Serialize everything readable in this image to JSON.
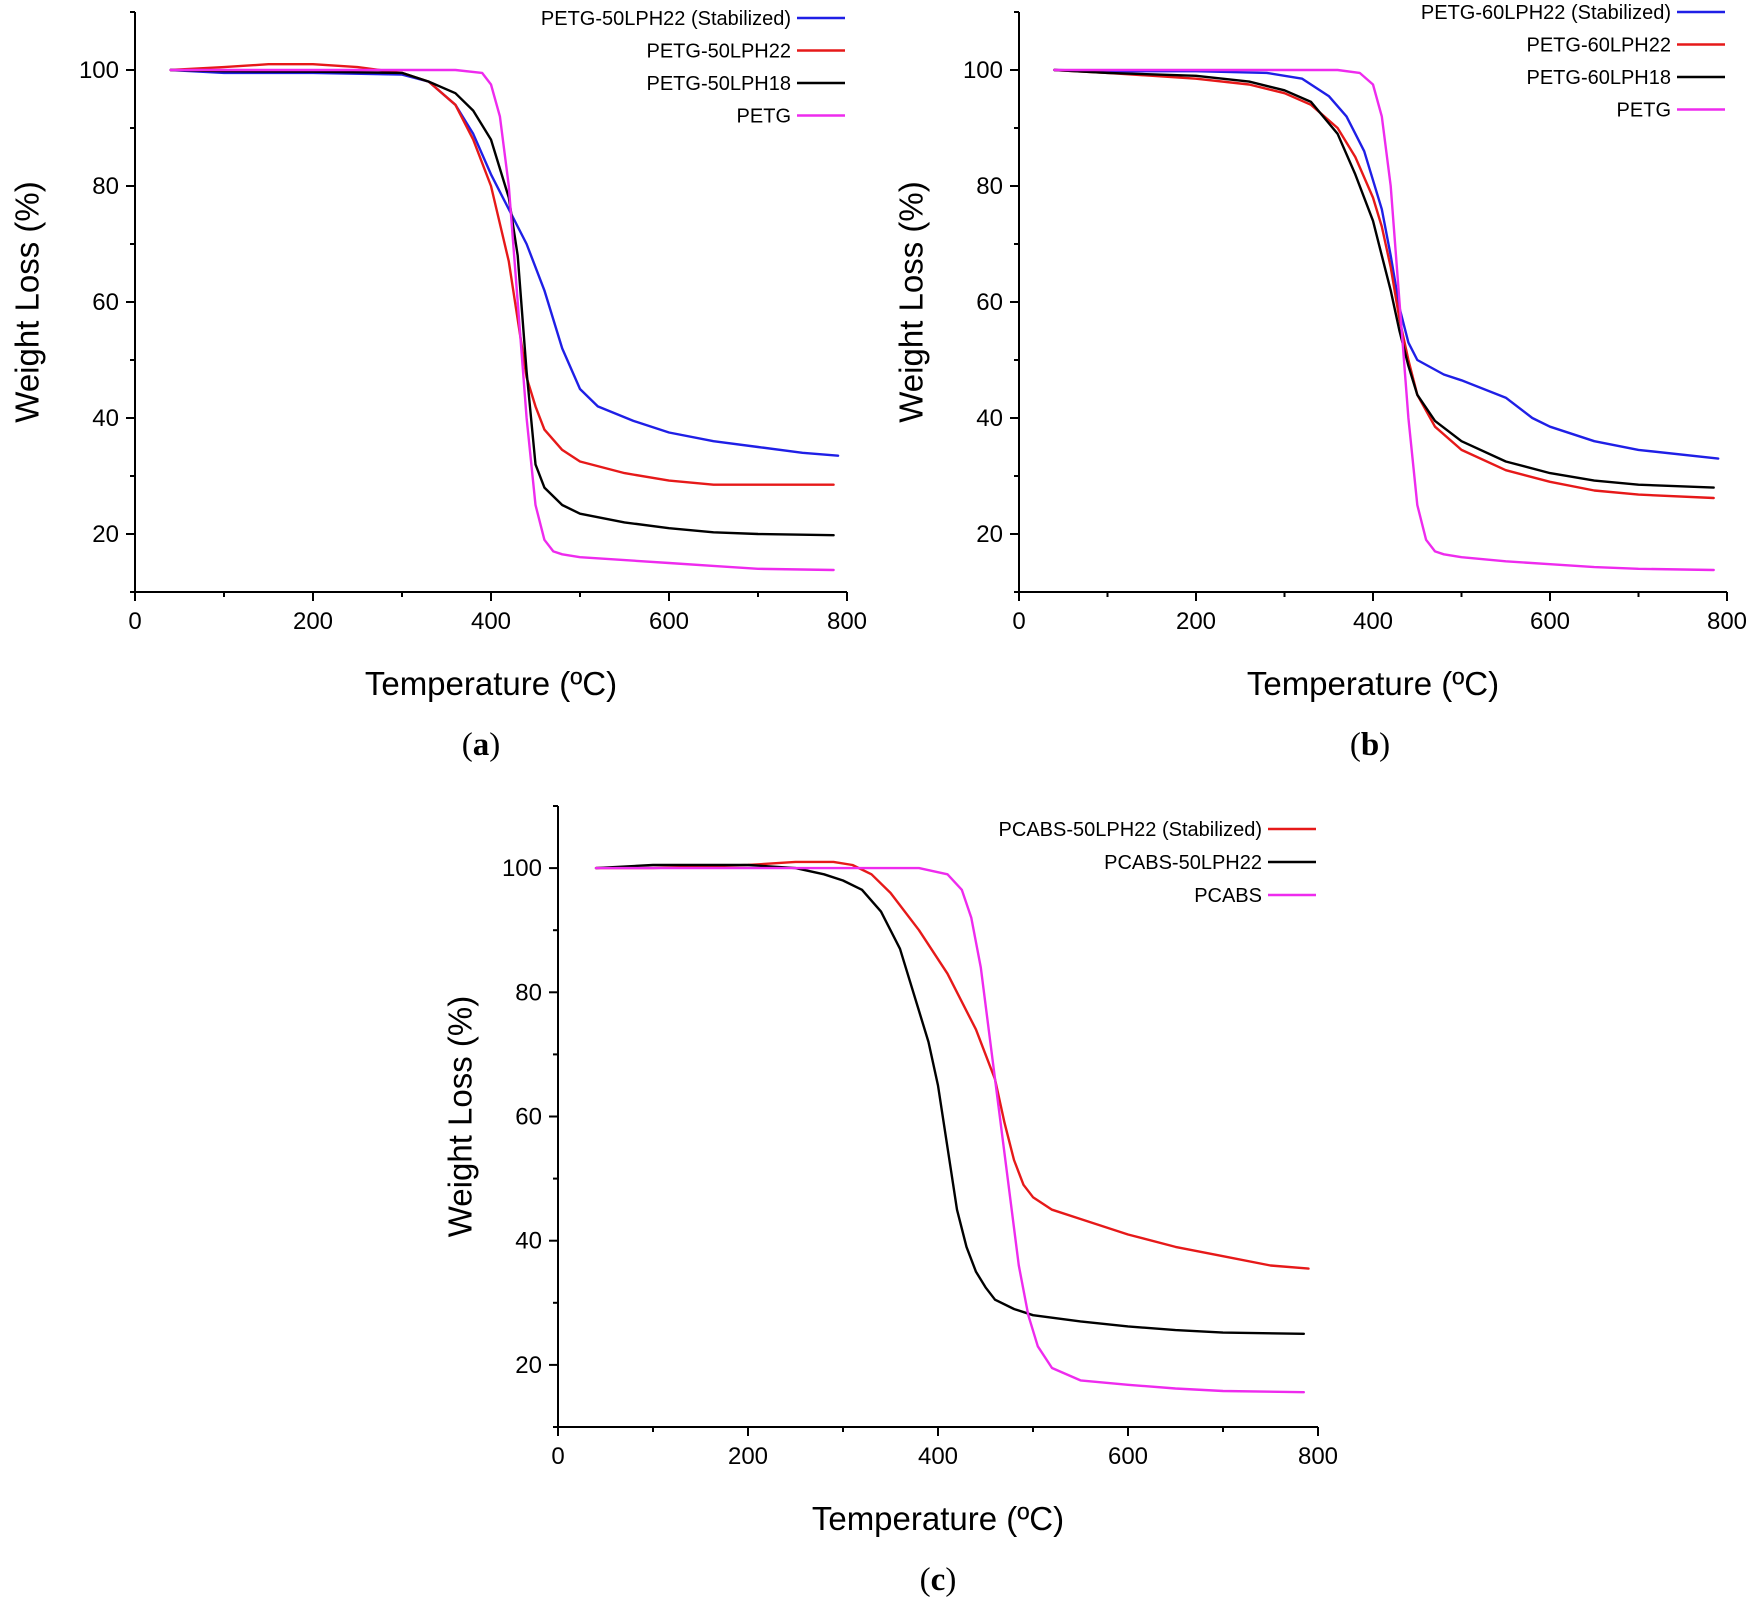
{
  "chart_data": [
    {
      "panel": "(a)",
      "panel_letter": "a",
      "type": "line",
      "xlabel": "Temperature (ºC)",
      "ylabel": "Weight Loss (%)",
      "xlim": [
        0,
        800
      ],
      "ylim": [
        10,
        110
      ],
      "xticks": [
        0,
        200,
        400,
        600,
        800
      ],
      "yticks": [
        20,
        40,
        60,
        80,
        100
      ],
      "grid": false,
      "legend_position": "top-right",
      "series": [
        {
          "name": "PETG-50LPH22 (Stabilized)",
          "color": "#1f1fe6",
          "x": [
            40,
            100,
            200,
            300,
            330,
            360,
            380,
            400,
            420,
            440,
            460,
            480,
            500,
            520,
            560,
            600,
            650,
            700,
            750,
            790
          ],
          "y": [
            100,
            99.5,
            99.5,
            99.2,
            98,
            94,
            89,
            82,
            76,
            70,
            62,
            52,
            45,
            42,
            39.5,
            37.5,
            36,
            35,
            34,
            33.5
          ]
        },
        {
          "name": "PETG-50LPH22",
          "color": "#e61919",
          "x": [
            40,
            100,
            150,
            200,
            250,
            300,
            330,
            360,
            380,
            400,
            420,
            440,
            450,
            460,
            480,
            500,
            550,
            600,
            650,
            700,
            785
          ],
          "y": [
            100,
            100.5,
            101,
            101,
            100.5,
            99.5,
            98,
            94,
            88,
            80,
            67,
            47,
            42,
            38,
            34.5,
            32.5,
            30.5,
            29.2,
            28.5,
            28.5,
            28.5
          ]
        },
        {
          "name": "PETG-50LPH18",
          "color": "#000000",
          "x": [
            40,
            100,
            200,
            300,
            330,
            360,
            380,
            400,
            420,
            430,
            440,
            450,
            460,
            480,
            500,
            550,
            600,
            650,
            700,
            785
          ],
          "y": [
            100,
            99.8,
            99.7,
            99.5,
            98,
            96,
            93,
            88,
            78,
            68,
            48,
            32,
            28,
            25,
            23.5,
            22,
            21,
            20.3,
            20,
            19.8
          ]
        },
        {
          "name": "PETG",
          "color": "#ee2bee",
          "x": [
            40,
            200,
            300,
            360,
            390,
            400,
            410,
            420,
            430,
            440,
            450,
            460,
            470,
            480,
            500,
            550,
            600,
            650,
            700,
            785
          ],
          "y": [
            100,
            100,
            100,
            100,
            99.5,
            97.5,
            92,
            80,
            60,
            40,
            25,
            19,
            17,
            16.5,
            16,
            15.5,
            15,
            14.5,
            14,
            13.8
          ]
        }
      ]
    },
    {
      "panel": "(b)",
      "panel_letter": "b",
      "type": "line",
      "xlabel": "Temperature (ºC)",
      "ylabel": "Weight Loss (%)",
      "xlim": [
        0,
        800
      ],
      "ylim": [
        10,
        110
      ],
      "xticks": [
        0,
        200,
        400,
        600,
        800
      ],
      "yticks": [
        20,
        40,
        60,
        80,
        100
      ],
      "grid": false,
      "legend_position": "top-right",
      "series": [
        {
          "name": "PETG-60LPH22 (Stabilized)",
          "color": "#1f1fe6",
          "x": [
            40,
            100,
            200,
            280,
            320,
            350,
            370,
            390,
            410,
            420,
            430,
            440,
            450,
            480,
            500,
            550,
            580,
            600,
            650,
            700,
            790
          ],
          "y": [
            100,
            99.8,
            99.8,
            99.5,
            98.5,
            95.5,
            92,
            86,
            76,
            68,
            59,
            53,
            50,
            47.5,
            46.5,
            43.5,
            40,
            38.5,
            36,
            34.5,
            33
          ]
        },
        {
          "name": "PETG-60LPH22",
          "color": "#e61919",
          "x": [
            40,
            100,
            200,
            260,
            300,
            330,
            360,
            380,
            400,
            410,
            420,
            430,
            440,
            450,
            470,
            500,
            550,
            600,
            650,
            700,
            785
          ],
          "y": [
            100,
            99.5,
            98.5,
            97.5,
            96,
            94,
            90,
            85,
            78,
            73,
            66,
            57,
            50,
            44,
            38.5,
            34.5,
            31,
            29,
            27.5,
            26.8,
            26.2
          ]
        },
        {
          "name": "PETG-60LPH18",
          "color": "#000000",
          "x": [
            40,
            100,
            200,
            260,
            300,
            330,
            360,
            380,
            400,
            410,
            420,
            430,
            440,
            450,
            470,
            500,
            550,
            600,
            650,
            700,
            785
          ],
          "y": [
            100,
            99.5,
            99,
            98,
            96.5,
            94.5,
            89,
            82,
            74,
            68,
            62,
            55,
            49,
            44,
            39.5,
            36,
            32.5,
            30.5,
            29.2,
            28.5,
            28
          ]
        },
        {
          "name": "PETG",
          "color": "#ee2bee",
          "x": [
            40,
            200,
            300,
            360,
            385,
            400,
            410,
            420,
            430,
            440,
            450,
            460,
            470,
            480,
            500,
            550,
            600,
            650,
            700,
            785
          ],
          "y": [
            100,
            100,
            100,
            100,
            99.5,
            97.5,
            92,
            80,
            60,
            40,
            25,
            19,
            17,
            16.5,
            16,
            15.3,
            14.8,
            14.3,
            14,
            13.8
          ]
        }
      ]
    },
    {
      "panel": "(c)",
      "panel_letter": "c",
      "type": "line",
      "xlabel": "Temperature (ºC)",
      "ylabel": "Weight Loss (%)",
      "xlim": [
        0,
        800
      ],
      "ylim": [
        10,
        110
      ],
      "xticks": [
        0,
        200,
        400,
        600,
        800
      ],
      "yticks": [
        20,
        40,
        60,
        80,
        100
      ],
      "grid": false,
      "legend_position": "top-right",
      "series": [
        {
          "name": "PCABS-50LPH22 (Stabilized)",
          "color": "#e61919",
          "x": [
            40,
            100,
            200,
            250,
            290,
            310,
            330,
            350,
            380,
            410,
            440,
            460,
            470,
            480,
            490,
            500,
            520,
            550,
            600,
            650,
            700,
            750,
            790
          ],
          "y": [
            100,
            100,
            100.5,
            101,
            101,
            100.5,
            99,
            96,
            90,
            83,
            74,
            66,
            59,
            53,
            49,
            47,
            45,
            43.5,
            41,
            39,
            37.5,
            36,
            35.5
          ]
        },
        {
          "name": "PCABS-50LPH22",
          "color": "#000000",
          "x": [
            40,
            100,
            200,
            250,
            280,
            300,
            320,
            340,
            360,
            380,
            390,
            400,
            410,
            420,
            430,
            440,
            450,
            460,
            480,
            500,
            550,
            600,
            650,
            700,
            785
          ],
          "y": [
            100,
            100.5,
            100.5,
            100,
            99,
            98,
            96.5,
            93,
            87,
            77,
            72,
            65,
            55,
            45,
            39,
            35,
            32.5,
            30.5,
            29,
            28,
            27,
            26.2,
            25.6,
            25.2,
            25
          ]
        },
        {
          "name": "PCABS",
          "color": "#ee2bee",
          "x": [
            40,
            200,
            300,
            380,
            410,
            425,
            435,
            445,
            455,
            465,
            475,
            485,
            495,
            505,
            520,
            550,
            600,
            650,
            700,
            785
          ],
          "y": [
            100,
            100,
            100,
            100,
            99,
            96.5,
            92,
            84,
            72,
            60,
            48,
            36,
            28,
            23,
            19.5,
            17.5,
            16.8,
            16.2,
            15.8,
            15.6
          ]
        }
      ]
    }
  ]
}
